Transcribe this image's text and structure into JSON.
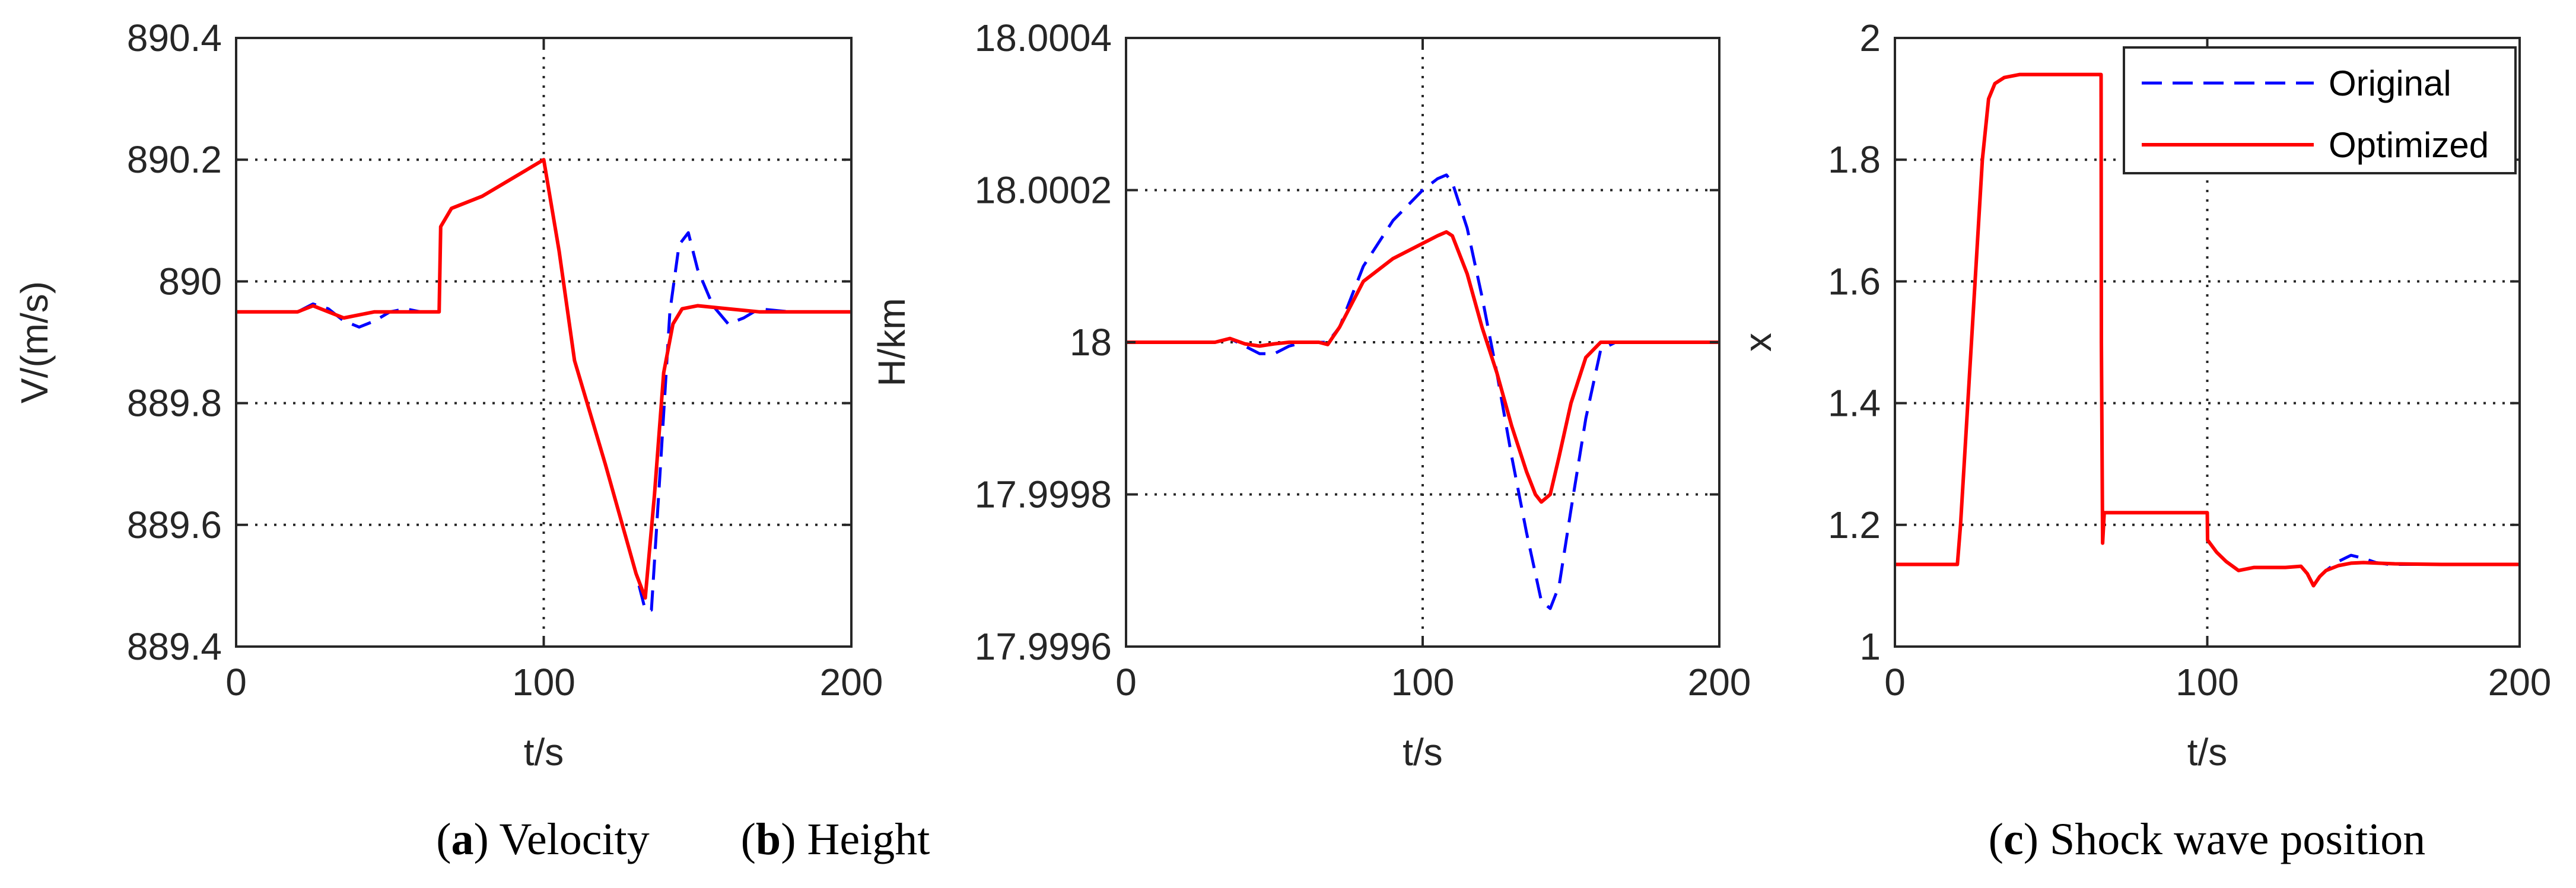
{
  "chart_data": [
    {
      "type": "line",
      "panel": "a",
      "caption_letter": "a",
      "caption_text": "Velocity",
      "xlabel": "t/s",
      "ylabel": "V/(m/s)",
      "xlim": [
        0,
        200
      ],
      "ylim": [
        889.4,
        890.4
      ],
      "xticks": [
        0,
        100,
        200
      ],
      "xtick_labels": [
        "0",
        "100",
        "200"
      ],
      "yticks": [
        889.4,
        889.6,
        889.8,
        890,
        890.2,
        890.4
      ],
      "ytick_labels": [
        "889.4",
        "889.6",
        "889.8",
        "890",
        "890.2",
        "890.4"
      ],
      "grid": true,
      "series": [
        {
          "name": "Original",
          "color": "#0000ff",
          "dash": true,
          "x": [
            0,
            20,
            25,
            30,
            35,
            40,
            45,
            50,
            55,
            60,
            66,
            66.5,
            70,
            80,
            90,
            100,
            105,
            110,
            120,
            130,
            133,
            135,
            138,
            141,
            144,
            147,
            150,
            155,
            160,
            165,
            170,
            180,
            190,
            200
          ],
          "y": [
            889.95,
            889.95,
            889.963,
            889.955,
            889.935,
            889.925,
            889.935,
            889.95,
            889.955,
            889.95,
            889.95,
            890.09,
            890.12,
            890.14,
            890.17,
            890.2,
            890.05,
            889.87,
            889.7,
            889.52,
            889.46,
            889.46,
            889.7,
            889.95,
            890.06,
            890.08,
            890.02,
            889.96,
            889.93,
            889.94,
            889.955,
            889.95,
            889.95,
            889.95
          ]
        },
        {
          "name": "Optimized",
          "color": "#ff0000",
          "dash": false,
          "x": [
            0,
            20,
            25,
            30,
            35,
            40,
            45,
            50,
            55,
            60,
            66,
            66.5,
            70,
            80,
            90,
            100,
            105,
            110,
            120,
            130,
            133,
            136,
            139,
            142,
            145,
            150,
            160,
            170,
            180,
            190,
            200
          ],
          "y": [
            889.95,
            889.95,
            889.96,
            889.95,
            889.94,
            889.945,
            889.95,
            889.95,
            889.95,
            889.95,
            889.95,
            890.09,
            890.12,
            890.14,
            890.17,
            890.2,
            890.05,
            889.87,
            889.7,
            889.52,
            889.48,
            889.65,
            889.85,
            889.93,
            889.955,
            889.96,
            889.955,
            889.95,
            889.95,
            889.95,
            889.95
          ]
        }
      ]
    },
    {
      "type": "line",
      "panel": "b",
      "caption_letter": "b",
      "caption_text": "Height",
      "xlabel": "t/s",
      "ylabel": "H/km",
      "xlim": [
        0,
        200
      ],
      "ylim": [
        17.9996,
        18.0004
      ],
      "xticks": [
        0,
        100,
        200
      ],
      "xtick_labels": [
        "0",
        "100",
        "200"
      ],
      "yticks": [
        17.9996,
        17.9998,
        18,
        18.0002,
        18.0004
      ],
      "ytick_labels": [
        "17.9996",
        "17.9998",
        "18",
        "18.0002",
        "18.0004"
      ],
      "grid": true,
      "series": [
        {
          "name": "Original",
          "color": "#0000ff",
          "dash": true,
          "x": [
            0,
            20,
            30,
            35,
            40,
            45,
            50,
            55,
            60,
            65,
            68,
            72,
            80,
            90,
            100,
            105,
            108,
            110,
            115,
            120,
            125,
            130,
            135,
            140,
            143,
            146,
            150,
            155,
            160,
            165,
            170,
            180,
            200
          ],
          "y": [
            18.0,
            18.0,
            18.0,
            18.000005,
            17.999995,
            17.999985,
            17.999985,
            17.999995,
            18.0,
            18.0,
            18.0,
            18.00002,
            18.0001,
            18.00016,
            18.0002,
            18.000215,
            18.00022,
            18.00021,
            18.00015,
            18.00006,
            17.99996,
            17.99985,
            17.99975,
            17.99966,
            17.99965,
            17.99968,
            17.99978,
            17.9999,
            17.99999,
            18.0,
            18.0,
            18.0,
            18.0
          ]
        },
        {
          "name": "Optimized",
          "color": "#ff0000",
          "dash": false,
          "x": [
            0,
            20,
            30,
            35,
            40,
            45,
            50,
            55,
            60,
            65,
            68,
            72,
            80,
            90,
            100,
            105,
            108,
            110,
            115,
            120,
            125,
            130,
            135,
            138,
            140,
            143,
            146,
            150,
            155,
            160,
            165,
            170,
            180,
            200
          ],
          "y": [
            18.0,
            18.0,
            18.0,
            18.000005,
            17.999998,
            17.999995,
            17.999998,
            18.0,
            18.0,
            18.0,
            17.999997,
            18.00002,
            18.00008,
            18.00011,
            18.00013,
            18.00014,
            18.000145,
            18.00014,
            18.00009,
            18.00002,
            17.99996,
            17.99989,
            17.99983,
            17.9998,
            17.99979,
            17.9998,
            17.99985,
            17.99992,
            17.99998,
            18.0,
            18.0,
            18.0,
            18.0,
            18.0
          ]
        }
      ]
    },
    {
      "type": "line",
      "panel": "c",
      "caption_letter": "c",
      "caption_text": "Shock wave position",
      "xlabel": "t/s",
      "ylabel": "x",
      "xlim": [
        0,
        200
      ],
      "ylim": [
        1,
        2
      ],
      "xticks": [
        0,
        100,
        200
      ],
      "xtick_labels": [
        "0",
        "100",
        "200"
      ],
      "yticks": [
        1,
        1.2,
        1.4,
        1.6,
        1.8,
        2
      ],
      "ytick_labels": [
        "1",
        "1.2",
        "1.4",
        "1.6",
        "1.8",
        "2"
      ],
      "grid": true,
      "legend": {
        "position": "top-right",
        "entries": [
          "Original",
          "Optimized"
        ]
      },
      "series": [
        {
          "name": "Original",
          "color": "#0000ff",
          "dash": true,
          "x": [
            0,
            20,
            21,
            28,
            30,
            32,
            35,
            40,
            50,
            60,
            66,
            66.1,
            66.5,
            67,
            70,
            80,
            90,
            100,
            100.1,
            103,
            106,
            110,
            115,
            120,
            125,
            130,
            132,
            134,
            136,
            138,
            142,
            146,
            150,
            154,
            158,
            165,
            175,
            200
          ],
          "y": [
            1.135,
            1.135,
            1.2,
            1.8,
            1.9,
            1.925,
            1.935,
            1.94,
            1.94,
            1.94,
            1.94,
            1.5,
            1.17,
            1.22,
            1.22,
            1.22,
            1.22,
            1.22,
            1.175,
            1.155,
            1.14,
            1.125,
            1.13,
            1.13,
            1.13,
            1.132,
            1.12,
            1.1,
            1.115,
            1.125,
            1.14,
            1.15,
            1.145,
            1.138,
            1.135,
            1.135,
            1.135,
            1.135
          ]
        },
        {
          "name": "Optimized",
          "color": "#ff0000",
          "dash": false,
          "x": [
            0,
            20,
            21,
            28,
            30,
            32,
            35,
            40,
            50,
            60,
            66,
            66.1,
            66.5,
            67,
            70,
            80,
            90,
            100,
            100.1,
            103,
            106,
            110,
            115,
            120,
            125,
            130,
            132,
            134,
            136,
            138,
            142,
            146,
            150,
            160,
            175,
            200
          ],
          "y": [
            1.135,
            1.135,
            1.2,
            1.8,
            1.9,
            1.925,
            1.935,
            1.94,
            1.94,
            1.94,
            1.94,
            1.5,
            1.17,
            1.22,
            1.22,
            1.22,
            1.22,
            1.22,
            1.175,
            1.155,
            1.14,
            1.125,
            1.13,
            1.13,
            1.13,
            1.132,
            1.12,
            1.1,
            1.115,
            1.125,
            1.133,
            1.137,
            1.138,
            1.136,
            1.135,
            1.135
          ]
        }
      ]
    }
  ]
}
